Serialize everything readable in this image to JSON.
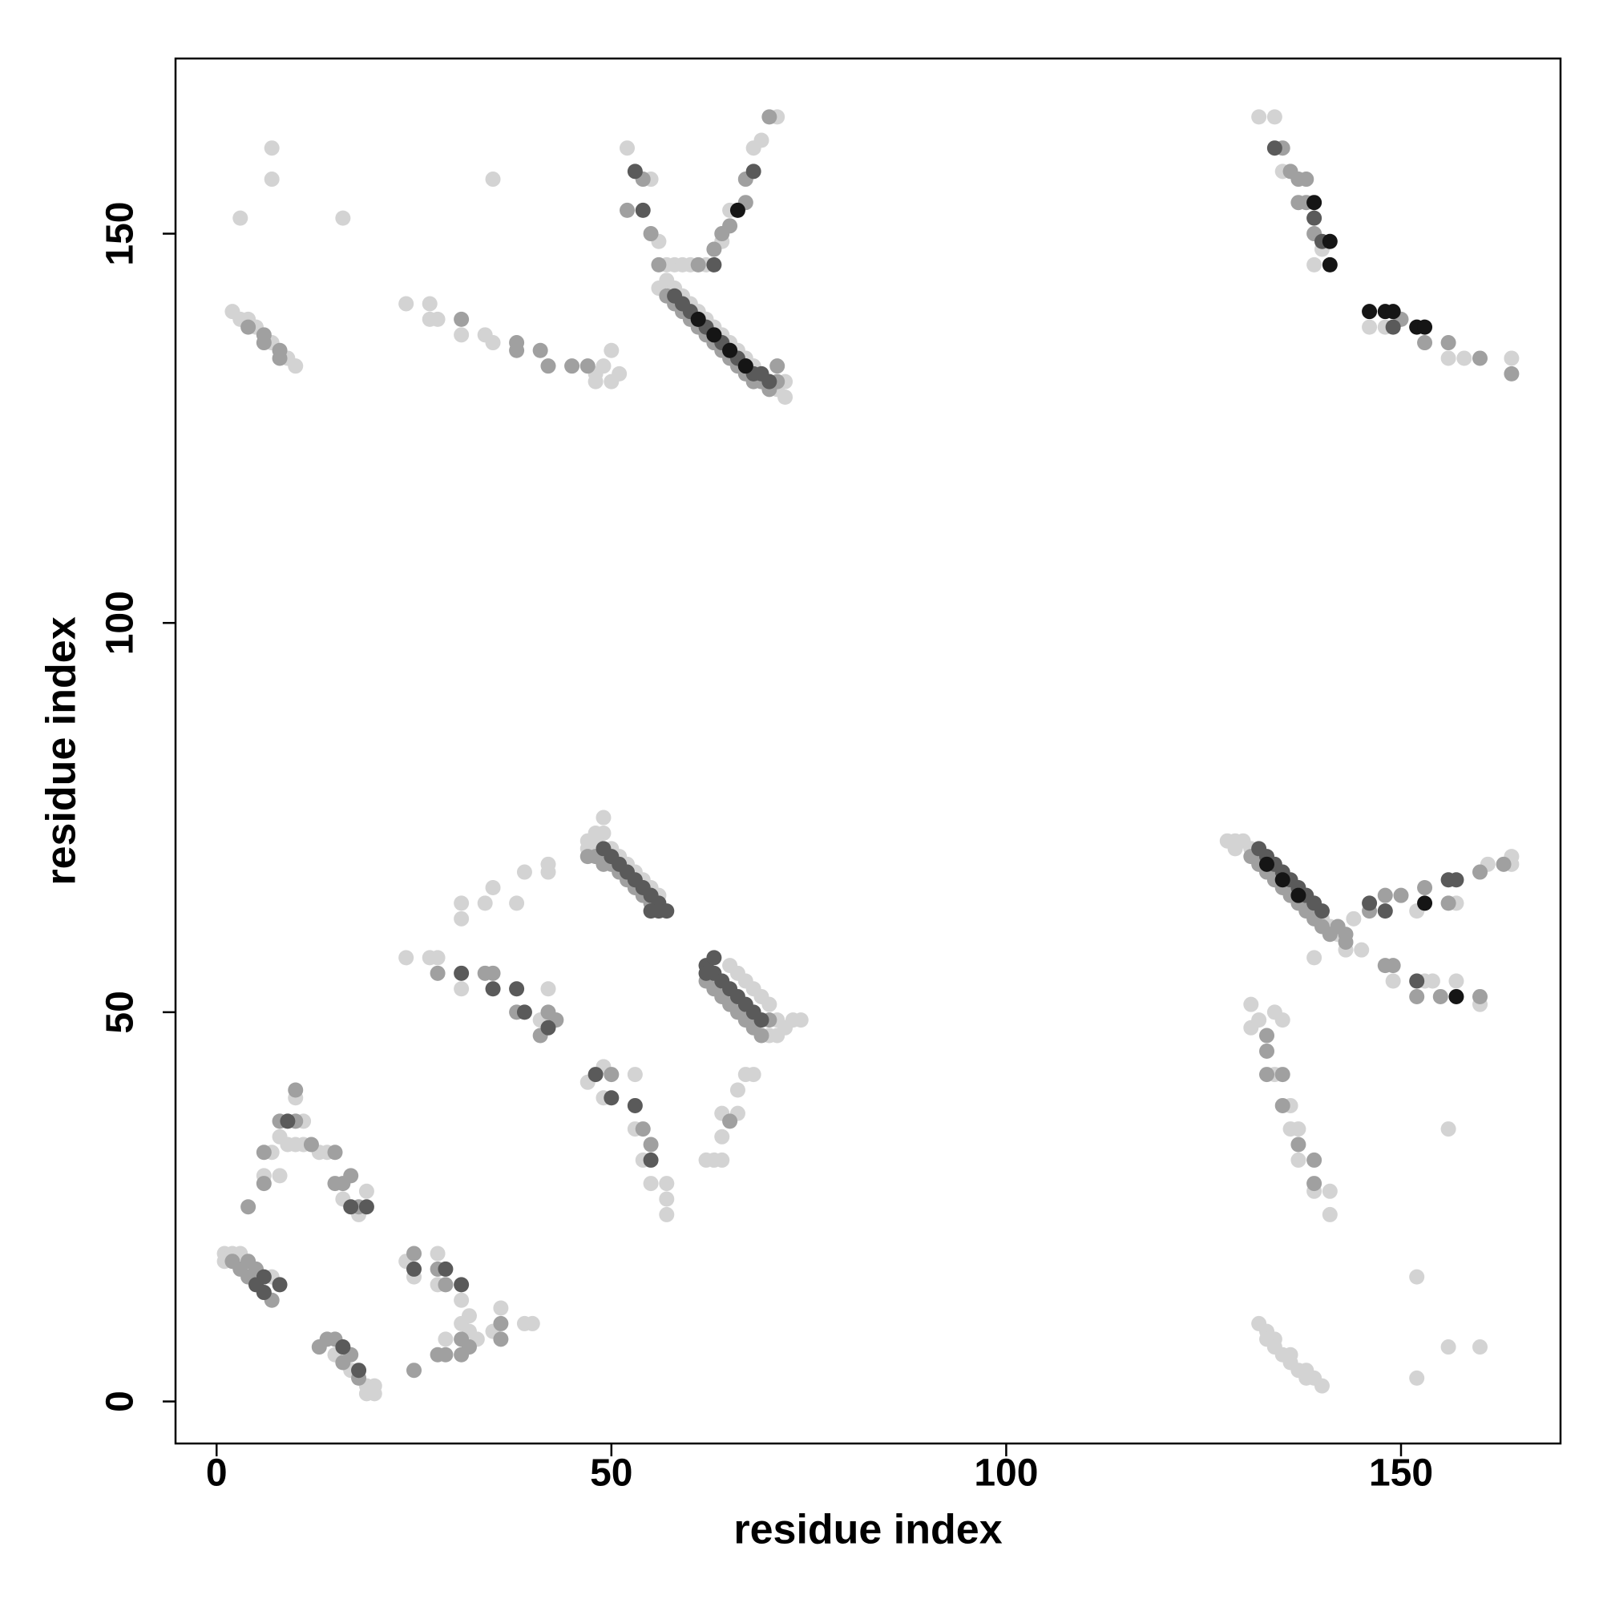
{
  "chart_data": {
    "type": "scatter",
    "xlabel": "residue index",
    "ylabel": "residue index",
    "xlim": [
      -5.2,
      170.2
    ],
    "ylim": [
      -5.4,
      172.5
    ],
    "xticks": [
      0,
      50,
      100,
      150
    ],
    "yticks": [
      0,
      50,
      100,
      150
    ],
    "grid": false,
    "series": [
      {
        "color": "#d3d3d3",
        "x": [
          2,
          3,
          4,
          5,
          7,
          9,
          10,
          3,
          7,
          7,
          16,
          35,
          24,
          27,
          27,
          28,
          31,
          34,
          35,
          48,
          48,
          50,
          51,
          50,
          49,
          56,
          57,
          58,
          59,
          60,
          61,
          62,
          63,
          64,
          65,
          66,
          67,
          68,
          69,
          70,
          71,
          72,
          72,
          52,
          57,
          58,
          59,
          60,
          55,
          62,
          64,
          65,
          68,
          69,
          71,
          56,
          132,
          134,
          135,
          140,
          139,
          146,
          148,
          156,
          158,
          164,
          31,
          31,
          34,
          35,
          38,
          39,
          42,
          42,
          49,
          47,
          48,
          49,
          47,
          48,
          50,
          51,
          52,
          53,
          54,
          55,
          56,
          24,
          27,
          28,
          31,
          41,
          42,
          65,
          66,
          67,
          68,
          69,
          70,
          71,
          72,
          73,
          74,
          70,
          71,
          47,
          49,
          49,
          53,
          53,
          54,
          55,
          57,
          57,
          57,
          62,
          63,
          64,
          64,
          64,
          66,
          66,
          67,
          68,
          1,
          2,
          3,
          1,
          7,
          8,
          8,
          10,
          9,
          10,
          11,
          11,
          13,
          14,
          16,
          19,
          18,
          6,
          7,
          15,
          17,
          19,
          19,
          20,
          20,
          24,
          25,
          28,
          28,
          31,
          32,
          31,
          32,
          33,
          36,
          35,
          39,
          40,
          29,
          128,
          129,
          130,
          129,
          131,
          132,
          133,
          134,
          135,
          136,
          137,
          138,
          139,
          140,
          141,
          142,
          144,
          152,
          157,
          161,
          164,
          164,
          143,
          145,
          149,
          153,
          154,
          157,
          160,
          139,
          131,
          131,
          132,
          134,
          136,
          136,
          137,
          137,
          139,
          141,
          141,
          134,
          135,
          156,
          132,
          133,
          133,
          134,
          134,
          135,
          136,
          136,
          137,
          138,
          138,
          139,
          140,
          152,
          152,
          156,
          160
        ],
        "values": [
          140,
          139,
          139,
          138,
          136,
          134,
          133,
          152,
          161,
          157,
          152,
          157,
          141,
          141,
          139,
          139,
          137,
          137,
          136,
          132,
          131,
          131,
          132,
          135,
          133,
          143,
          144,
          143,
          142,
          141,
          140,
          139,
          138,
          137,
          136,
          135,
          134,
          133,
          132,
          131,
          130,
          129,
          131,
          161,
          146,
          146,
          146,
          146,
          157,
          146,
          149,
          153,
          161,
          162,
          165,
          149,
          165,
          165,
          158,
          148,
          146,
          138,
          138,
          134,
          134,
          134,
          64,
          62,
          64,
          66,
          64,
          68,
          69,
          68,
          75,
          72,
          73,
          73,
          71,
          72,
          71,
          70,
          69,
          68,
          67,
          66,
          65,
          57,
          57,
          57,
          53,
          49,
          53,
          56,
          55,
          54,
          53,
          52,
          51,
          49,
          48,
          49,
          49,
          47,
          47,
          41,
          43,
          39,
          42,
          35,
          31,
          28,
          28,
          26,
          24,
          31,
          31,
          31,
          34,
          37,
          37,
          40,
          42,
          42,
          19,
          19,
          19,
          18,
          16,
          29,
          34,
          39,
          33,
          33,
          33,
          36,
          32,
          32,
          26,
          27,
          24,
          29,
          32,
          6,
          4,
          2,
          1,
          1,
          2,
          18,
          16,
          19,
          15,
          13,
          11,
          10,
          9,
          8,
          12,
          9,
          10,
          10,
          8,
          72,
          72,
          72,
          71,
          71,
          70,
          69,
          68,
          67,
          66,
          65,
          64,
          63,
          62,
          61,
          60,
          62,
          63,
          64,
          69,
          69,
          70,
          58,
          58,
          54,
          54,
          54,
          54,
          51,
          57,
          51,
          48,
          49,
          42,
          38,
          35,
          35,
          31,
          27,
          27,
          24,
          50,
          49,
          35,
          10,
          9,
          8,
          8,
          7,
          6,
          6,
          5,
          4,
          3,
          4,
          3,
          2,
          16,
          3,
          7,
          7
        ]
      },
      {
        "color": "#a0a0a0",
        "x": [
          4,
          6,
          6,
          8,
          8,
          31,
          38,
          38,
          41,
          42,
          45,
          47,
          57,
          58,
          59,
          60,
          61,
          62,
          63,
          64,
          65,
          66,
          67,
          68,
          69,
          70,
          71,
          71,
          54,
          52,
          55,
          56,
          61,
          63,
          64,
          65,
          67,
          67,
          70,
          135,
          136,
          137,
          138,
          137,
          138,
          139,
          150,
          153,
          156,
          160,
          164,
          47,
          48,
          49,
          50,
          51,
          52,
          53,
          54,
          55,
          28,
          34,
          35,
          38,
          41,
          42,
          43,
          62,
          63,
          64,
          65,
          66,
          67,
          68,
          69,
          70,
          50,
          54,
          55,
          65,
          4,
          5,
          4,
          6,
          6,
          8,
          10,
          10,
          12,
          15,
          15,
          16,
          17,
          18,
          2,
          3,
          4,
          7,
          14,
          16,
          17,
          18,
          13,
          15,
          25,
          28,
          29,
          31,
          32,
          36,
          36,
          28,
          29,
          31,
          25,
          131,
          132,
          133,
          134,
          135,
          136,
          137,
          138,
          139,
          140,
          141,
          142,
          143,
          146,
          148,
          150,
          153,
          156,
          160,
          163,
          143,
          148,
          149,
          155,
          160,
          152,
          133,
          133,
          133,
          135,
          135,
          137,
          139,
          139
        ],
        "values": [
          138,
          137,
          136,
          135,
          134,
          139,
          136,
          135,
          135,
          133,
          133,
          133,
          142,
          141,
          140,
          139,
          138,
          137,
          136,
          135,
          134,
          133,
          132,
          131,
          131,
          130,
          131,
          133,
          157,
          153,
          150,
          146,
          146,
          148,
          150,
          151,
          154,
          157,
          165,
          161,
          158,
          157,
          157,
          154,
          154,
          150,
          139,
          136,
          136,
          134,
          132,
          70,
          70,
          69,
          69,
          68,
          67,
          66,
          65,
          64,
          55,
          55,
          55,
          50,
          47,
          50,
          49,
          54,
          53,
          52,
          51,
          50,
          49,
          48,
          47,
          49,
          42,
          35,
          33,
          36,
          18,
          17,
          25,
          28,
          32,
          36,
          36,
          40,
          33,
          32,
          28,
          28,
          29,
          25,
          18,
          17,
          16,
          13,
          8,
          5,
          6,
          3,
          7,
          8,
          19,
          17,
          15,
          8,
          7,
          10,
          8,
          6,
          6,
          6,
          4,
          70,
          69,
          68,
          67,
          66,
          65,
          64,
          63,
          62,
          61,
          60,
          61,
          60,
          63,
          65,
          65,
          66,
          64,
          68,
          69,
          59,
          56,
          56,
          52,
          52,
          52,
          47,
          45,
          42,
          42,
          38,
          33,
          31,
          28
        ]
      },
      {
        "color": "#5a5a5a",
        "x": [
          58,
          59,
          60,
          61,
          62,
          63,
          64,
          65,
          66,
          67,
          68,
          69,
          70,
          53,
          54,
          63,
          68,
          134,
          139,
          140,
          149,
          49,
          50,
          51,
          52,
          53,
          54,
          55,
          56,
          57,
          55,
          56,
          31,
          35,
          38,
          39,
          42,
          62,
          63,
          64,
          65,
          66,
          67,
          68,
          69,
          63,
          62,
          48,
          50,
          53,
          55,
          6,
          8,
          5,
          6,
          9,
          17,
          19,
          16,
          18,
          25,
          29,
          31,
          132,
          133,
          134,
          135,
          136,
          137,
          138,
          139,
          140,
          146,
          148,
          156,
          157,
          152
        ],
        "values": [
          142,
          141,
          140,
          139,
          138,
          137,
          136,
          135,
          134,
          133,
          132,
          132,
          131,
          158,
          153,
          146,
          158,
          161,
          152,
          149,
          138,
          71,
          70,
          69,
          68,
          67,
          66,
          65,
          64,
          63,
          63,
          63,
          55,
          53,
          53,
          50,
          48,
          56,
          55,
          54,
          53,
          52,
          51,
          50,
          49,
          57,
          55,
          42,
          39,
          38,
          31,
          16,
          15,
          15,
          14,
          36,
          25,
          25,
          7,
          4,
          17,
          17,
          15,
          71,
          70,
          69,
          68,
          67,
          66,
          65,
          64,
          63,
          64,
          63,
          67,
          67,
          54
        ]
      },
      {
        "color": "#151515",
        "x": [
          61,
          63,
          65,
          67,
          66,
          139,
          141,
          141,
          146,
          148,
          149,
          152,
          153,
          153,
          157,
          133,
          135,
          137
        ],
        "values": [
          139,
          137,
          135,
          133,
          153,
          154,
          149,
          146,
          140,
          140,
          140,
          138,
          138,
          64,
          52,
          69,
          67,
          65
        ]
      }
    ]
  }
}
